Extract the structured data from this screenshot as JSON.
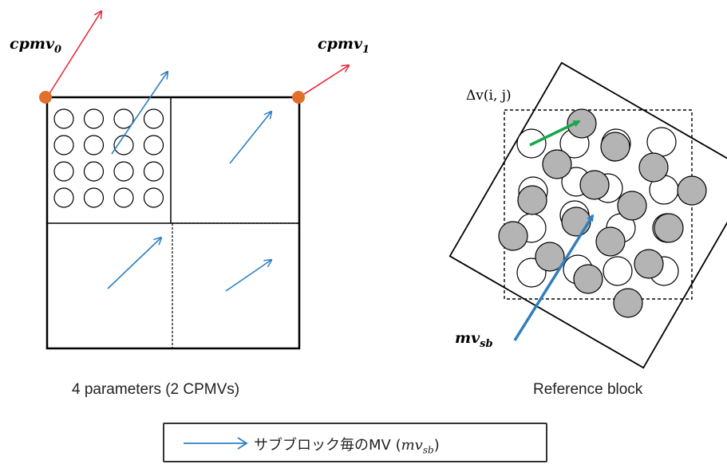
{
  "labels": {
    "cpmv0": {
      "base": "cpmv",
      "sub": "0"
    },
    "cpmv1": {
      "base": "cpmv",
      "sub": "1"
    },
    "delta_v": "Δv(i, j)",
    "mv_sb": {
      "base": "mv",
      "sub": "sb"
    }
  },
  "captions": {
    "left": "4 parameters (2 CPMVs)",
    "right": "Reference block"
  },
  "legend": {
    "text": "サブブロック毎のMV (",
    "math": "mv",
    "math_sub": "sb",
    "close": ")"
  },
  "colors": {
    "cpmv_arrow": "#e8283a",
    "mv_arrow": "#2e7fc0",
    "delta_arrow": "#1aa64b",
    "control_point": "#e0702a",
    "sample_fill": "#b4b4b4",
    "stroke": "#000000"
  }
}
